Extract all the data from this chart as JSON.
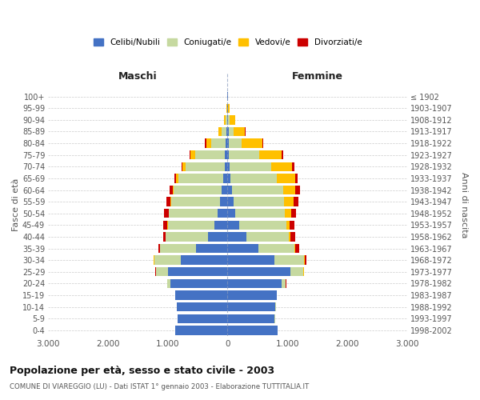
{
  "age_groups": [
    "0-4",
    "5-9",
    "10-14",
    "15-19",
    "20-24",
    "25-29",
    "30-34",
    "35-39",
    "40-44",
    "45-49",
    "50-54",
    "55-59",
    "60-64",
    "65-69",
    "70-74",
    "75-79",
    "80-84",
    "85-89",
    "90-94",
    "95-99",
    "100+"
  ],
  "birth_years": [
    "1998-2002",
    "1993-1997",
    "1988-1992",
    "1983-1987",
    "1978-1982",
    "1973-1977",
    "1968-1972",
    "1963-1967",
    "1958-1962",
    "1953-1957",
    "1948-1952",
    "1943-1947",
    "1938-1942",
    "1933-1937",
    "1928-1932",
    "1923-1927",
    "1918-1922",
    "1913-1917",
    "1908-1912",
    "1903-1907",
    "≤ 1902"
  ],
  "male_celibi": [
    870,
    830,
    850,
    870,
    950,
    1000,
    780,
    530,
    330,
    220,
    160,
    120,
    100,
    70,
    50,
    40,
    30,
    20,
    10,
    5,
    2
  ],
  "male_coniugati": [
    2,
    2,
    5,
    10,
    60,
    200,
    450,
    600,
    700,
    780,
    820,
    820,
    800,
    750,
    650,
    500,
    250,
    80,
    20,
    5,
    1
  ],
  "male_vedovi": [
    0,
    0,
    0,
    0,
    2,
    3,
    2,
    2,
    3,
    5,
    5,
    10,
    15,
    40,
    50,
    80,
    80,
    50,
    30,
    5,
    0
  ],
  "male_divorziati": [
    0,
    0,
    0,
    0,
    2,
    5,
    10,
    20,
    50,
    70,
    80,
    70,
    60,
    30,
    20,
    15,
    15,
    5,
    2,
    0,
    0
  ],
  "female_celibi": [
    840,
    790,
    800,
    820,
    900,
    1050,
    780,
    520,
    320,
    200,
    130,
    100,
    80,
    50,
    35,
    25,
    20,
    15,
    10,
    5,
    2
  ],
  "female_coniugati": [
    2,
    2,
    5,
    10,
    70,
    220,
    500,
    600,
    700,
    780,
    830,
    850,
    850,
    780,
    700,
    500,
    220,
    80,
    20,
    5,
    1
  ],
  "female_vedovi": [
    0,
    0,
    0,
    0,
    5,
    5,
    10,
    15,
    30,
    60,
    100,
    150,
    200,
    300,
    350,
    380,
    350,
    200,
    100,
    30,
    5
  ],
  "female_divorziati": [
    0,
    0,
    0,
    0,
    5,
    10,
    30,
    70,
    80,
    80,
    80,
    80,
    80,
    40,
    30,
    20,
    10,
    5,
    2,
    0,
    0
  ],
  "colors": {
    "celibi": "#4472C4",
    "coniugati": "#C6D9A0",
    "vedovi": "#FFC000",
    "divorziati": "#CC0000"
  },
  "title": "Popolazione per età, sesso e stato civile - 2003",
  "subtitle": "COMUNE DI VIAREGGIO (LU) - Dati ISTAT 1° gennaio 2003 - Elaborazione TUTTITALIA.IT",
  "xlabel_left": "Maschi",
  "xlabel_right": "Femmine",
  "ylabel_left": "Fasce di età",
  "ylabel_right": "Anni di nascita",
  "xlim": 3000,
  "xticks": [
    -3000,
    -2000,
    -1000,
    0,
    1000,
    2000,
    3000
  ],
  "xticklabels": [
    "3.000",
    "2.000",
    "1.000",
    "0",
    "1.000",
    "2.000",
    "3.000"
  ],
  "bg_color": "#FFFFFF",
  "grid_color": "#CCCCCC"
}
